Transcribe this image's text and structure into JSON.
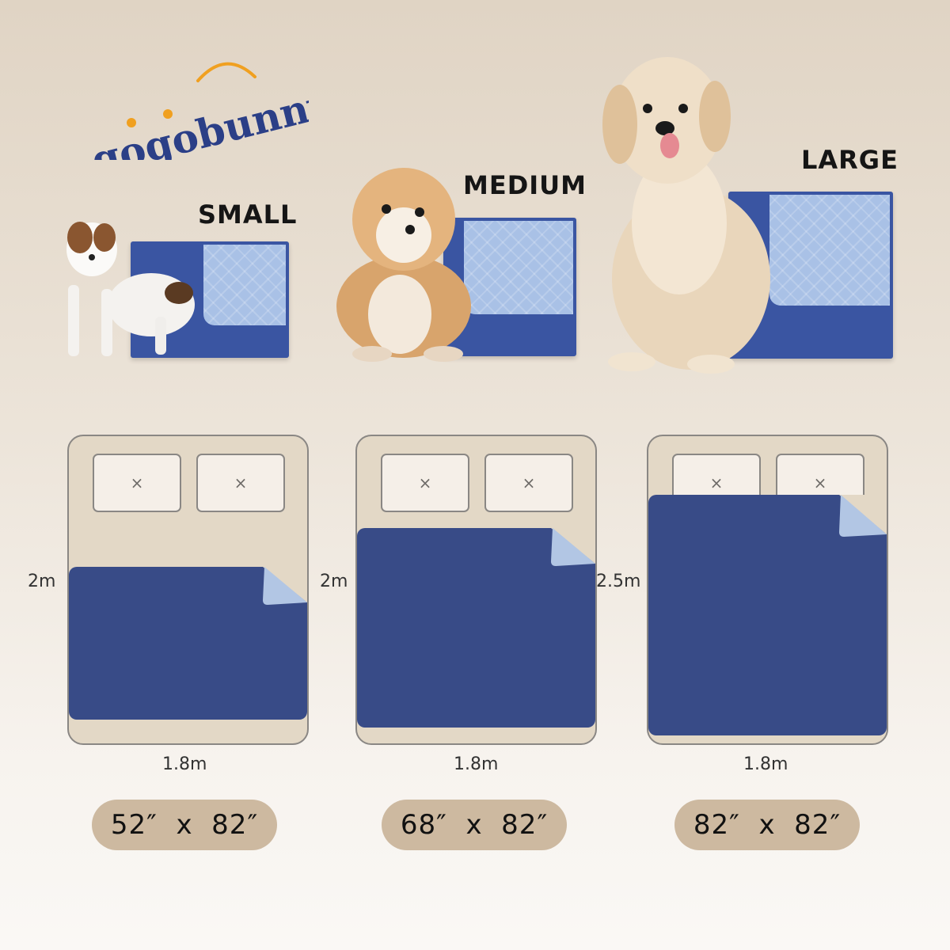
{
  "brand": {
    "logo_text": "gogobunny",
    "primary_color": "#2b3f87",
    "accent_color": "#f0a020"
  },
  "colors": {
    "pad_blue": "#3a55a2",
    "pad_light": "#a9c1e6",
    "sheet_blue": "#384b87",
    "pill": "#cdb9a0",
    "bed": "#e3d8c6"
  },
  "sizes": [
    {
      "label": "SMALL",
      "dog_icon": "puppy-dog-icon",
      "height": "2m",
      "width": "1.8m",
      "dimensions": "52″  x  82″"
    },
    {
      "label": "MEDIUM",
      "dog_icon": "fluffy-dog-icon",
      "height": "2m",
      "width": "1.8m",
      "dimensions": "68″  x  82″"
    },
    {
      "label": "LARGE",
      "dog_icon": "golden-retriever-icon",
      "height": "2.5m",
      "width": "1.8m",
      "dimensions": "82″  x  82″"
    }
  ],
  "pillow_mark": "×"
}
